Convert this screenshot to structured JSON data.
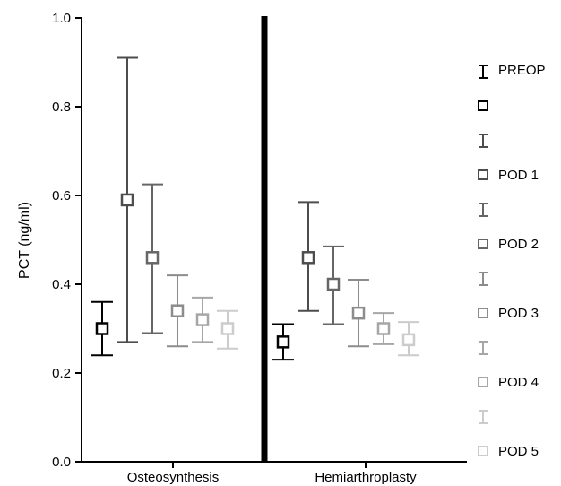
{
  "chart_data": {
    "type": "scatter",
    "title": "",
    "xlabel": "",
    "ylabel": "PCT (ng/ml)",
    "ylim": [
      0,
      1.0
    ],
    "yticks": [
      "0.0",
      "0.2",
      "0.4",
      "0.6",
      "0.8",
      "1.0"
    ],
    "grid": false,
    "legend_position": "right",
    "categories": [
      "Osteosynthesis",
      "Hemiarthroplasty"
    ],
    "series": [
      {
        "name": "PREOP",
        "color": "#000000",
        "mean": [
          0.3,
          0.27
        ],
        "lower": [
          0.24,
          0.23
        ],
        "upper": [
          0.36,
          0.31
        ]
      },
      {
        "name": "POD 1",
        "color": "#4d4d4d",
        "mean": [
          0.59,
          0.46
        ],
        "lower": [
          0.27,
          0.34
        ],
        "upper": [
          0.91,
          0.585
        ]
      },
      {
        "name": "POD 2",
        "color": "#666666",
        "mean": [
          0.46,
          0.4
        ],
        "lower": [
          0.29,
          0.31
        ],
        "upper": [
          0.625,
          0.485
        ]
      },
      {
        "name": "POD 3",
        "color": "#8c8c8c",
        "mean": [
          0.34,
          0.335
        ],
        "lower": [
          0.26,
          0.26
        ],
        "upper": [
          0.42,
          0.41
        ]
      },
      {
        "name": "POD 4",
        "color": "#a6a6a6",
        "mean": [
          0.32,
          0.3
        ],
        "lower": [
          0.27,
          0.265
        ],
        "upper": [
          0.37,
          0.335
        ]
      },
      {
        "name": "POD 5",
        "color": "#cccccc",
        "mean": [
          0.3,
          0.275
        ],
        "lower": [
          0.255,
          0.24
        ],
        "upper": [
          0.34,
          0.315
        ]
      }
    ]
  }
}
